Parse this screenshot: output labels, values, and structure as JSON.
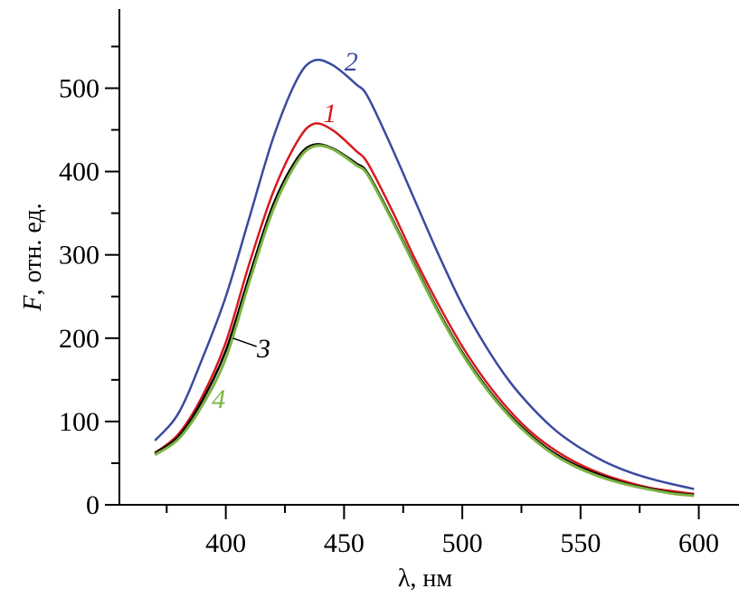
{
  "chart_data": {
    "type": "line",
    "title": "",
    "xlabel": "λ, нм",
    "ylabel_italic": "F",
    "ylabel_rest": ", отн. ед.",
    "xlim": [
      355,
      617
    ],
    "ylim": [
      0,
      595
    ],
    "xticks": [
      400,
      450,
      500,
      550,
      600
    ],
    "xminor": [
      375,
      425,
      475,
      525,
      575
    ],
    "yticks": [
      0,
      100,
      200,
      300,
      400,
      500
    ],
    "yminor": [
      50,
      150,
      250,
      350,
      450,
      550
    ],
    "grid": false,
    "x": [
      370,
      380,
      390,
      400,
      410,
      420,
      430,
      437,
      445,
      455,
      460,
      470,
      480,
      490,
      500,
      510,
      520,
      530,
      540,
      550,
      560,
      570,
      580,
      590,
      598
    ],
    "series": [
      {
        "name": "1",
        "color": "#d7191c",
        "values": [
          62,
          85,
          130,
          195,
          290,
          375,
          435,
          457,
          450,
          425,
          410,
          355,
          295,
          240,
          190,
          148,
          113,
          85,
          64,
          48,
          36,
          27,
          20,
          16,
          13
        ],
        "label_at": [
          444,
          470
        ]
      },
      {
        "name": "2",
        "color": "#3b4a9e",
        "values": [
          77,
          110,
          175,
          250,
          345,
          440,
          510,
          533,
          528,
          505,
          490,
          430,
          365,
          300,
          240,
          190,
          148,
          115,
          88,
          68,
          52,
          40,
          31,
          24,
          19
        ],
        "label_at": [
          453,
          532
        ]
      },
      {
        "name": "3",
        "color": "#000000",
        "values": [
          62,
          82,
          125,
          185,
          275,
          360,
          415,
          432,
          428,
          410,
          398,
          345,
          288,
          232,
          183,
          142,
          108,
          81,
          60,
          45,
          34,
          25,
          19,
          14,
          12
        ],
        "label_at": [
          416,
          188
        ],
        "leader": [
          [
            403,
            200
          ],
          [
            413,
            190
          ]
        ]
      },
      {
        "name": "4",
        "color": "#7cb342",
        "values": [
          60,
          79,
          119,
          176,
          268,
          354,
          411,
          430,
          427,
          408,
          396,
          343,
          286,
          230,
          181,
          140,
          106,
          79,
          58,
          43,
          32,
          24,
          18,
          13,
          11
        ],
        "label_at": [
          397,
          127
        ]
      }
    ]
  }
}
